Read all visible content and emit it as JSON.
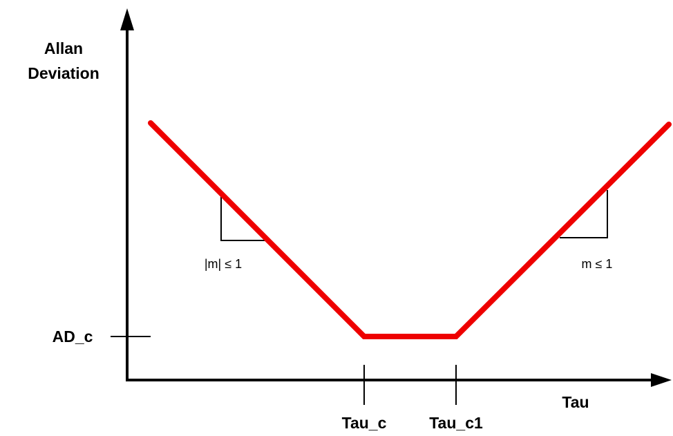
{
  "y_axis_label_line1": "Allan",
  "y_axis_label_line2": "Deviation",
  "x_axis_label": "Tau",
  "y_marker_label": "AD_c",
  "x_marker_1_label": "Tau_c",
  "x_marker_2_label": "Tau_c1",
  "left_slope_label": "|m| ≤ 1",
  "right_slope_label": "m ≤ 1",
  "curve_color": "#ee0000",
  "axis_color": "#000000"
}
